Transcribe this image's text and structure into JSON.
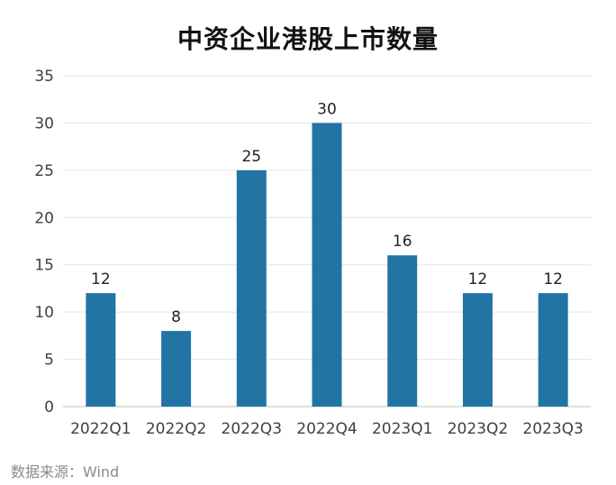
{
  "chart_data": {
    "type": "bar",
    "title": "中资企业港股上市数量",
    "categories": [
      "2022Q1",
      "2022Q2",
      "2022Q3",
      "2022Q4",
      "2023Q1",
      "2023Q2",
      "2023Q3"
    ],
    "values": [
      12,
      8,
      25,
      30,
      16,
      12,
      12
    ],
    "data_labels": [
      "12",
      "8",
      "25",
      "30",
      "16",
      "12",
      "12"
    ],
    "y_ticks": [
      "0",
      "5",
      "10",
      "15",
      "20",
      "25",
      "30",
      "35"
    ],
    "ylim": [
      0,
      35
    ],
    "xlabel": "",
    "ylabel": "",
    "grid": true,
    "legend": "none",
    "bar_color": "#2274a5"
  },
  "source": "数据来源：Wind"
}
